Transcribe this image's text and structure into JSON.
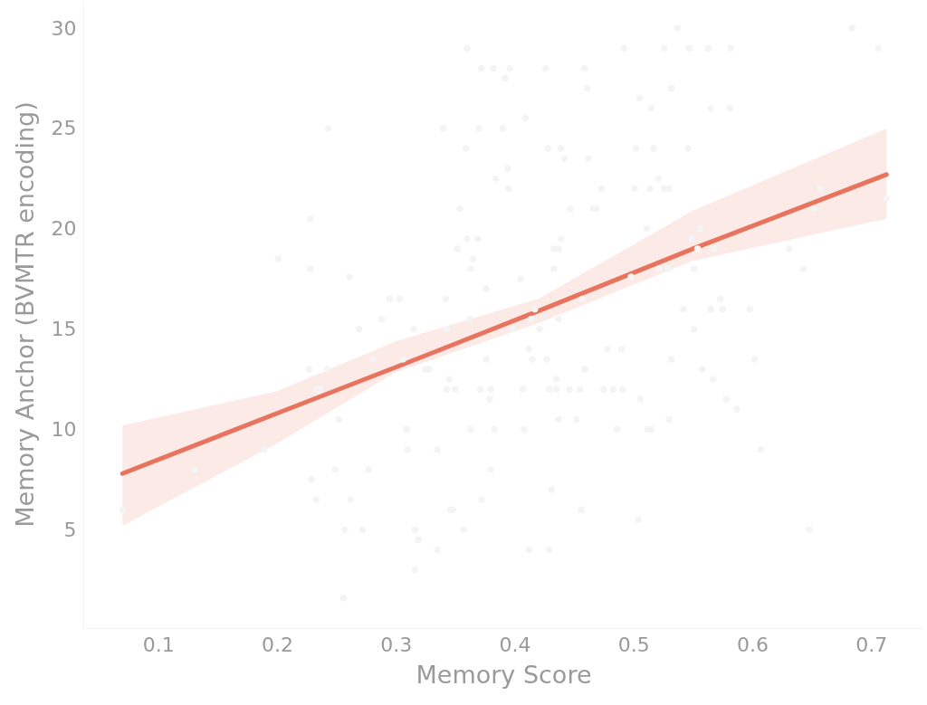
{
  "chart_data": {
    "type": "scatter",
    "xlabel": "Memory Score",
    "ylabel": "Memory Anchor (BVMTR encoding)",
    "xlim": [
      0.037,
      0.744
    ],
    "ylim": [
      0.1,
      31.4
    ],
    "xticks": [
      0.1,
      0.2,
      0.3,
      0.4,
      0.5,
      0.6,
      0.7
    ],
    "yticks": [
      5,
      10,
      15,
      20,
      25,
      30
    ],
    "series": [
      {
        "marker": "circle",
        "color": "#f4f4f4",
        "x": [
          0.07,
          0.131,
          0.189,
          0.201,
          0.228,
          0.228,
          0.243,
          0.227,
          0.233,
          0.229,
          0.233,
          0.249,
          0.252,
          0.256,
          0.257,
          0.261,
          0.262,
          0.269,
          0.272,
          0.277,
          0.281,
          0.288,
          0.295,
          0.303,
          0.309,
          0.31,
          0.315,
          0.316,
          0.316,
          0.319,
          0.325,
          0.328,
          0.335,
          0.335,
          0.34,
          0.342,
          0.343,
          0.343,
          0.345,
          0.346,
          0.348,
          0.35,
          0.352,
          0.354,
          0.357,
          0.359,
          0.36,
          0.36,
          0.362,
          0.363,
          0.363,
          0.365,
          0.369,
          0.37,
          0.371,
          0.372,
          0.372,
          0.376,
          0.376,
          0.379,
          0.38,
          0.38,
          0.382,
          0.383,
          0.384,
          0.39,
          0.392,
          0.394,
          0.395,
          0.396,
          0.399,
          0.405,
          0.407,
          0.408,
          0.409,
          0.412,
          0.412,
          0.415,
          0.417,
          0.421,
          0.426,
          0.427,
          0.428,
          0.429,
          0.429,
          0.431,
          0.433,
          0.433,
          0.435,
          0.435,
          0.437,
          0.437,
          0.437,
          0.439,
          0.439,
          0.442,
          0.446,
          0.447,
          0.452,
          0.455,
          0.456,
          0.457,
          0.459,
          0.459,
          0.461,
          0.462,
          0.466,
          0.469,
          0.473,
          0.475,
          0.478,
          0.483,
          0.486,
          0.49,
          0.491,
          0.492,
          0.501,
          0.502,
          0.504,
          0.505,
          0.506,
          0.511,
          0.512,
          0.514,
          0.515,
          0.515,
          0.517,
          0.521,
          0.522,
          0.526,
          0.526,
          0.53,
          0.532,
          0.532,
          0.53,
          0.537,
          0.542,
          0.546,
          0.547,
          0.551,
          0.554,
          0.558,
          0.563,
          0.565,
          0.565,
          0.567,
          0.573,
          0.575,
          0.578,
          0.581,
          0.582,
          0.587,
          0.598,
          0.602,
          0.607,
          0.643,
          0.648,
          0.684,
          0.706,
          0.657,
          0.652,
          0.631,
          0.713,
          0.568,
          0.556,
          0.549,
          0.551,
          0.529,
          0.498,
          0.414,
          0.306,
          0.242,
          0.236
        ],
        "values": [
          6,
          8,
          9,
          18.5,
          20.5,
          18,
          25,
          13,
          12,
          7.5,
          6.5,
          8,
          10.5,
          1.6,
          5,
          17.6,
          6.5,
          15,
          5,
          8,
          13.5,
          15.5,
          16.5,
          16.5,
          10,
          9,
          15,
          3,
          5,
          4.5,
          13,
          13,
          9,
          4,
          25,
          16.5,
          15,
          12,
          12.5,
          6,
          6,
          12,
          19,
          21,
          5,
          24,
          29,
          19.5,
          15.5,
          10,
          18,
          18.5,
          19.5,
          25,
          12,
          6.5,
          28,
          17,
          13.5,
          11.5,
          12,
          8,
          28,
          10,
          22.5,
          25,
          27.5,
          23,
          22,
          28,
          15,
          17.5,
          12,
          10,
          25.5,
          4,
          14,
          13.5,
          16,
          15,
          28,
          13.5,
          24,
          12,
          4,
          7,
          18,
          19,
          12,
          12.5,
          10.5,
          15.5,
          19,
          24,
          19.5,
          23.5,
          12,
          21,
          10.5,
          12,
          6,
          16.5,
          28,
          13,
          27,
          23.5,
          21,
          21,
          22,
          12,
          14,
          12,
          10,
          14,
          12,
          29,
          22,
          24,
          5.5,
          26.5,
          11.5,
          20,
          10,
          22,
          26,
          10,
          24,
          22.5,
          18,
          29,
          22,
          22,
          13.5,
          27,
          10.5,
          30,
          16,
          24,
          29,
          15,
          19,
          13,
          29,
          26,
          16,
          12.5,
          16.5,
          16,
          11.5,
          26,
          29,
          11,
          16,
          13.5,
          9,
          18,
          5,
          30,
          29,
          22,
          21,
          19,
          21.5,
          19,
          20,
          19.5,
          18,
          18,
          17.6,
          15.5,
          13.5,
          13,
          12
        ]
      },
      {
        "type": "line",
        "color": "#e8735f",
        "x": [
          0.07,
          0.2,
          0.3,
          0.42,
          0.55,
          0.713
        ],
        "values": [
          7.8,
          10.8,
          13.1,
          15.9,
          19,
          22.7
        ],
        "lower": [
          5.2,
          9.3,
          12.85,
          15.3,
          18.4,
          20.5
        ],
        "upper": [
          10.2,
          11.9,
          14.4,
          16.5,
          20.9,
          25
        ]
      }
    ]
  }
}
